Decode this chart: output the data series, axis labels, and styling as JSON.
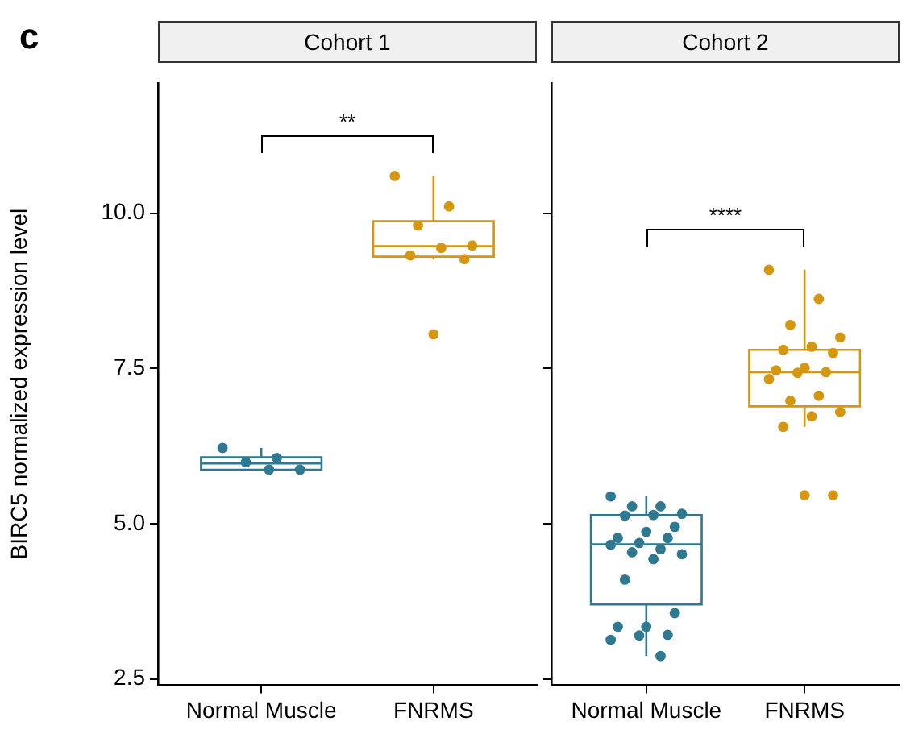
{
  "chart_data": [
    {
      "type": "box",
      "title": "Cohort 1",
      "ylabel": "BIRC5 normalized expression level",
      "categories": [
        "Normal Muscle",
        "FNRMS"
      ],
      "colors": [
        "#2e7891",
        "#d4970f"
      ],
      "boxes": [
        {
          "low": 5.87,
          "q1": 5.87,
          "median": 5.97,
          "q3": 6.07,
          "high": 6.22
        },
        {
          "low": 9.26,
          "q1": 9.3,
          "median": 9.47,
          "q3": 9.87,
          "high": 10.6
        }
      ],
      "series": [
        {
          "type": "scatter",
          "color": "#2e7891",
          "x": [
            "Normal Muscle",
            "Normal Muscle",
            "Normal Muscle",
            "Normal Muscle",
            "Normal Muscle"
          ],
          "values": [
            6.22,
            6.06,
            5.99,
            5.87,
            5.87
          ]
        },
        {
          "type": "scatter",
          "color": "#d4970f",
          "x": [
            "FNRMS",
            "FNRMS",
            "FNRMS",
            "FNRMS",
            "FNRMS",
            "FNRMS",
            "FNRMS",
            "FNRMS"
          ],
          "values": [
            10.6,
            10.11,
            9.8,
            9.48,
            9.44,
            9.32,
            9.26,
            8.05
          ]
        }
      ],
      "ylim": [
        2.4,
        12.1
      ],
      "yticks": [
        {
          "value": 2.5,
          "label": "2.5"
        },
        {
          "value": 5,
          "label": "5.0"
        },
        {
          "value": 7.5,
          "label": "7.5"
        },
        {
          "value": 10,
          "label": "10.0"
        }
      ],
      "grid": false,
      "legend": false,
      "marker": "circle",
      "annotations": [
        "c",
        "**"
      ]
    },
    {
      "type": "box",
      "title": "Cohort 2",
      "categories": [
        "Normal Muscle",
        "FNRMS"
      ],
      "colors": [
        "#2e7891",
        "#d4970f"
      ],
      "boxes": [
        {
          "low": 2.87,
          "q1": 3.7,
          "median": 4.67,
          "q3": 5.14,
          "high": 5.44
        },
        {
          "low": 6.56,
          "q1": 6.89,
          "median": 7.44,
          "q3": 7.8,
          "high": 9.09
        }
      ],
      "series": [
        {
          "type": "scatter",
          "color": "#2e7891",
          "x": [
            "Normal Muscle",
            "Normal Muscle",
            "Normal Muscle",
            "Normal Muscle",
            "Normal Muscle",
            "Normal Muscle",
            "Normal Muscle",
            "Normal Muscle",
            "Normal Muscle",
            "Normal Muscle",
            "Normal Muscle",
            "Normal Muscle",
            "Normal Muscle",
            "Normal Muscle",
            "Normal Muscle",
            "Normal Muscle",
            "Normal Muscle",
            "Normal Muscle",
            "Normal Muscle",
            "Normal Muscle",
            "Normal Muscle",
            "Normal Muscle",
            "Normal Muscle",
            "Normal Muscle"
          ],
          "values": [
            5.44,
            5.28,
            5.28,
            5.16,
            5.14,
            5.13,
            4.95,
            4.87,
            4.77,
            4.77,
            4.69,
            4.66,
            4.59,
            4.54,
            4.51,
            4.43,
            4.1,
            3.56,
            3.34,
            3.34,
            3.21,
            3.2,
            3.13,
            2.87
          ]
        },
        {
          "type": "scatter",
          "color": "#d4970f",
          "x": [
            "FNRMS",
            "FNRMS",
            "FNRMS",
            "FNRMS",
            "FNRMS",
            "FNRMS",
            "FNRMS",
            "FNRMS",
            "FNRMS",
            "FNRMS",
            "FNRMS",
            "FNRMS",
            "FNRMS",
            "FNRMS",
            "FNRMS",
            "FNRMS",
            "FNRMS",
            "FNRMS",
            "FNRMS"
          ],
          "values": [
            9.09,
            8.62,
            8.2,
            8.0,
            7.85,
            7.8,
            7.75,
            7.51,
            7.47,
            7.44,
            7.43,
            7.33,
            7.06,
            6.98,
            6.8,
            6.73,
            6.56,
            5.46,
            5.46
          ]
        }
      ],
      "ylim": [
        2.4,
        12.1
      ],
      "yticks": [
        {
          "value": 2.5,
          "label": null
        },
        {
          "value": 5,
          "label": null
        },
        {
          "value": 7.5,
          "label": null
        },
        {
          "value": 10,
          "label": null
        }
      ],
      "grid": false,
      "legend": false,
      "marker": "circle",
      "tick_labels": "x",
      "annotations": [
        "****"
      ]
    }
  ]
}
